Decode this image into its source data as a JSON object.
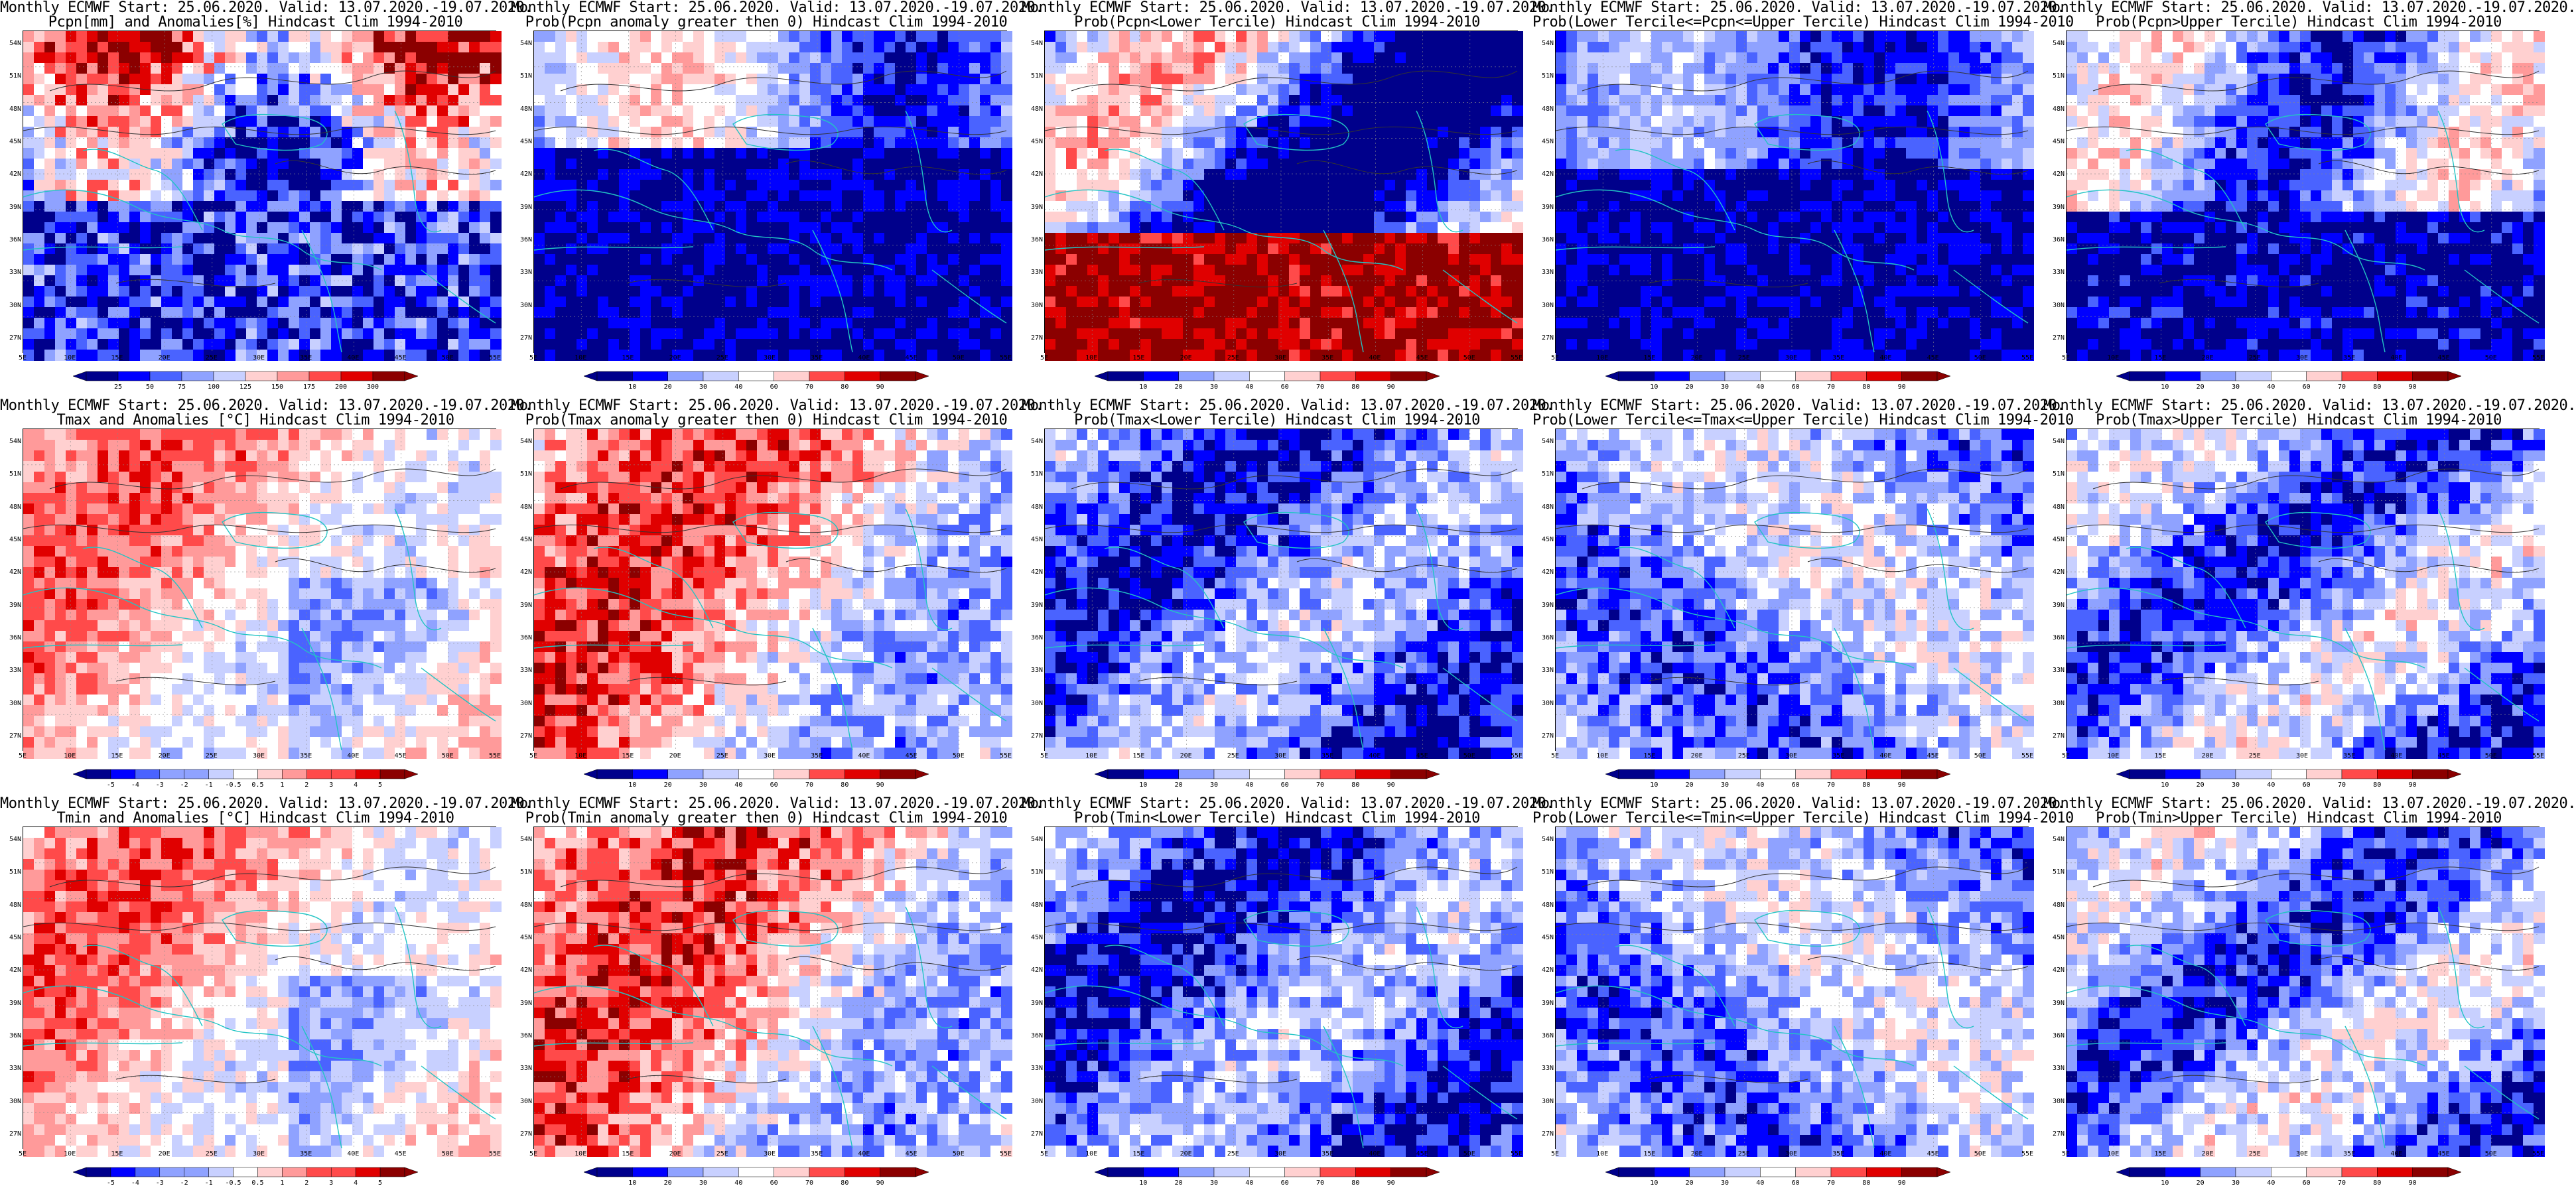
{
  "axes": {
    "lat_ticks": [
      "54N",
      "51N",
      "48N",
      "45N",
      "42N",
      "39N",
      "36N",
      "33N",
      "30N",
      "27N"
    ],
    "lon_ticks": [
      "5E",
      "10E",
      "15E",
      "20E",
      "25E",
      "30E",
      "35E",
      "40E",
      "45E",
      "50E",
      "55E"
    ]
  },
  "colors": {
    "coast": "#22c4c4",
    "contour": "#333333",
    "diverging_blue_to_red": [
      "#00008b",
      "#0000ff",
      "#4a63ff",
      "#8fa2ff",
      "#c8d0ff",
      "#ffffff",
      "#ffd0d0",
      "#ff9a9a",
      "#ff4a4a",
      "#e00000",
      "#8b0000"
    ]
  },
  "colorbars": {
    "pcpn_anom": [
      "25",
      "50",
      "75",
      "100",
      "125",
      "150",
      "175",
      "200",
      "300"
    ],
    "temp_anom": [
      "-5",
      "-4",
      "-3",
      "-2",
      "-1",
      "-0.5",
      "0.5",
      "1",
      "2",
      "3",
      "4",
      "5"
    ],
    "prob": [
      "10",
      "20",
      "30",
      "40",
      "60",
      "70",
      "80",
      "90"
    ]
  },
  "panels": [
    {
      "title1": "Monthly ECMWF Start: 25.06.2020. Valid: 13.07.2020.-19.07.2020.",
      "title2": "Pcpn[mm] and Anomalies[%] Hindcast Clim 1994-2010",
      "cbar": "pcpn_anom",
      "pattern": "pcpn_anom"
    },
    {
      "title1": "Monthly ECMWF Start: 25.06.2020. Valid: 13.07.2020.-19.07.2020.",
      "title2": "Prob(Pcpn anomaly greater then 0) Hindcast Clim 1994-2010",
      "cbar": "prob",
      "pattern": "pcpn_prob_pos"
    },
    {
      "title1": "Monthly ECMWF Start: 25.06.2020. Valid: 13.07.2020.-19.07.2020.",
      "title2": "Prob(Pcpn<Lower Tercile) Hindcast Clim 1994-2010",
      "cbar": "prob",
      "pattern": "pcpn_lower"
    },
    {
      "title1": "Monthly ECMWF Start: 25.06.2020. Valid: 13.07.2020.-19.07.2020.",
      "title2": "Prob(Lower Tercile<=Pcpn<=Upper Tercile) Hindcast Clim 1994-2010",
      "cbar": "prob",
      "pattern": "pcpn_middle"
    },
    {
      "title1": "Monthly ECMWF Start: 25.06.2020. Valid: 13.07.2020.-19.07.2020.",
      "title2": "Prob(Pcpn>Upper Tercile) Hindcast Clim 1994-2010",
      "cbar": "prob",
      "pattern": "pcpn_upper"
    },
    {
      "title1": "Monthly ECMWF Start: 25.06.2020. Valid: 13.07.2020.-19.07.2020.",
      "title2": "Tmax and Anomalies [°C] Hindcast Clim 1994-2010",
      "cbar": "temp_anom",
      "pattern": "t_anom"
    },
    {
      "title1": "Monthly ECMWF Start: 25.06.2020. Valid: 13.07.2020.-19.07.2020.",
      "title2": "Prob(Tmax anomaly greater then 0) Hindcast Clim 1994-2010",
      "cbar": "prob",
      "pattern": "t_pos"
    },
    {
      "title1": "Monthly ECMWF Start: 25.06.2020. Valid: 13.07.2020.-19.07.2020.",
      "title2": "Prob(Tmax<Lower Tercile) Hindcast Clim 1994-2010",
      "cbar": "prob",
      "pattern": "t_lower"
    },
    {
      "title1": "Monthly ECMWF Start: 25.06.2020. Valid: 13.07.2020.-19.07.2020.",
      "title2": "Prob(Lower Tercile<=Tmax<=Upper Tercile) Hindcast Clim 1994-2010",
      "cbar": "prob",
      "pattern": "t_middle"
    },
    {
      "title1": "Monthly ECMWF Start: 25.06.2020. Valid: 13.07.2020.-19.07.2020.",
      "title2": "Prob(Tmax>Upper Tercile) Hindcast Clim 1994-2010",
      "cbar": "prob",
      "pattern": "t_upper"
    },
    {
      "title1": "Monthly ECMWF Start: 25.06.2020. Valid: 13.07.2020.-19.07.2020.",
      "title2": "Tmin and Anomalies [°C] Hindcast Clim 1994-2010",
      "cbar": "temp_anom",
      "pattern": "t_anom"
    },
    {
      "title1": "Monthly ECMWF Start: 25.06.2020. Valid: 13.07.2020.-19.07.2020.",
      "title2": "Prob(Tmin anomaly greater then 0) Hindcast Clim 1994-2010",
      "cbar": "prob",
      "pattern": "t_pos"
    },
    {
      "title1": "Monthly ECMWF Start: 25.06.2020. Valid: 13.07.2020.-19.07.2020.",
      "title2": "Prob(Tmin<Lower Tercile) Hindcast Clim 1994-2010",
      "cbar": "prob",
      "pattern": "t_lower"
    },
    {
      "title1": "Monthly ECMWF Start: 25.06.2020. Valid: 13.07.2020.-19.07.2020.",
      "title2": "Prob(Lower Tercile<=Tmin<=Upper Tercile) Hindcast Clim 1994-2010",
      "cbar": "prob",
      "pattern": "t_middle"
    },
    {
      "title1": "Monthly ECMWF Start: 25.06.2020. Valid: 13.07.2020.-19.07.2020.",
      "title2": "Prob(Tmin>Upper Tercile) Hindcast Clim 1994-2010",
      "cbar": "prob",
      "pattern": "t_upper"
    }
  ]
}
